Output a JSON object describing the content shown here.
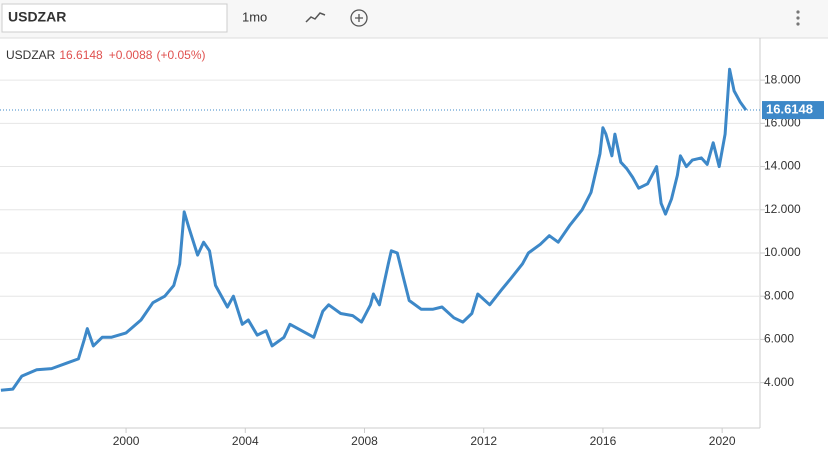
{
  "toolbar": {
    "symbol": "USDZAR",
    "period": "1mo"
  },
  "chart_data": {
    "type": "line",
    "title": "USDZAR",
    "last_price": 16.6148,
    "change": "+0.0088",
    "change_pct": "(+0.05%)",
    "x": [
      1995.8,
      1996.2,
      1996.5,
      1997.0,
      1997.5,
      1998.0,
      1998.4,
      1998.6,
      1998.7,
      1998.9,
      1999.2,
      1999.5,
      2000.0,
      2000.5,
      2000.9,
      2001.3,
      2001.6,
      2001.8,
      2001.95,
      2002.1,
      2002.4,
      2002.6,
      2002.8,
      2003.0,
      2003.4,
      2003.6,
      2003.9,
      2004.1,
      2004.4,
      2004.7,
      2004.9,
      2005.3,
      2005.5,
      2005.9,
      2006.3,
      2006.6,
      2006.8,
      2007.2,
      2007.6,
      2007.9,
      2008.2,
      2008.3,
      2008.5,
      2008.8,
      2008.9,
      2009.1,
      2009.3,
      2009.5,
      2009.9,
      2010.3,
      2010.6,
      2011.0,
      2011.3,
      2011.6,
      2011.8,
      2012.2,
      2012.6,
      2012.9,
      2013.3,
      2013.5,
      2013.9,
      2014.2,
      2014.5,
      2014.9,
      2015.3,
      2015.6,
      2015.9,
      2016.0,
      2016.1,
      2016.3,
      2016.4,
      2016.6,
      2016.8,
      2017.0,
      2017.2,
      2017.5,
      2017.8,
      2017.95,
      2018.1,
      2018.3,
      2018.5,
      2018.6,
      2018.8,
      2019.0,
      2019.3,
      2019.5,
      2019.7,
      2019.9,
      2020.1,
      2020.25,
      2020.4,
      2020.6,
      2020.8
    ],
    "series": [
      {
        "name": "USDZAR",
        "color": "#3d88c8",
        "values": [
          3.65,
          3.7,
          4.3,
          4.6,
          4.65,
          4.9,
          5.1,
          6.0,
          6.5,
          5.7,
          6.1,
          6.1,
          6.3,
          6.9,
          7.7,
          8.0,
          8.5,
          9.5,
          11.9,
          11.2,
          9.9,
          10.5,
          10.1,
          8.5,
          7.5,
          8.0,
          6.7,
          6.9,
          6.2,
          6.4,
          5.7,
          6.1,
          6.7,
          6.4,
          6.1,
          7.3,
          7.6,
          7.2,
          7.1,
          6.8,
          7.6,
          8.1,
          7.6,
          9.5,
          10.1,
          10.0,
          8.9,
          7.8,
          7.4,
          7.4,
          7.5,
          7.0,
          6.8,
          7.2,
          8.1,
          7.6,
          8.3,
          8.8,
          9.5,
          10.0,
          10.4,
          10.8,
          10.5,
          11.3,
          12.0,
          12.8,
          14.6,
          15.8,
          15.5,
          14.5,
          15.5,
          14.2,
          13.9,
          13.5,
          13.0,
          13.2,
          14.0,
          12.3,
          11.8,
          12.5,
          13.6,
          14.5,
          14.0,
          14.3,
          14.4,
          14.1,
          15.1,
          14.0,
          15.5,
          18.5,
          17.5,
          17.0,
          16.6148
        ]
      }
    ],
    "xlim": [
      1995.77,
      2021.27
    ],
    "xticks": [
      2000,
      2004,
      2008,
      2012,
      2016,
      2020
    ],
    "ylim": [
      1.9,
      19.95
    ],
    "yticks": [
      {
        "value": 4,
        "label": "4.000"
      },
      {
        "value": 6,
        "label": "6.000"
      },
      {
        "value": 8,
        "label": "8.000"
      },
      {
        "value": 10,
        "label": "10.000"
      },
      {
        "value": 12,
        "label": "12.000"
      },
      {
        "value": 14,
        "label": "14.000"
      },
      {
        "value": 16,
        "label": "16.000"
      },
      {
        "value": 18,
        "label": "18.000"
      }
    ],
    "grid": true
  }
}
